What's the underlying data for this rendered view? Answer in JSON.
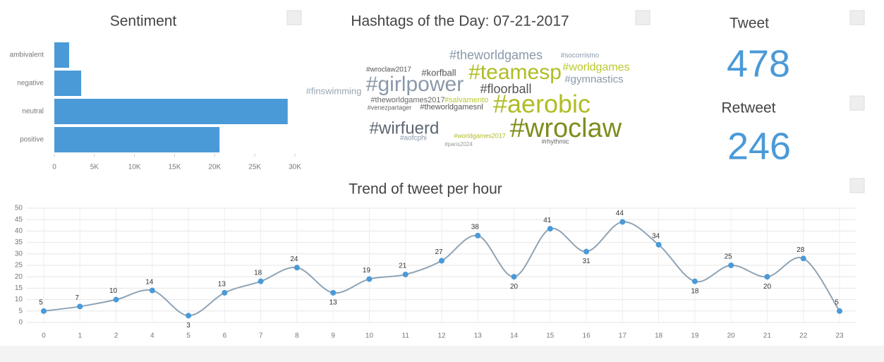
{
  "chart_data": [
    {
      "type": "hbar",
      "title": "Sentiment",
      "categories": [
        "ambivalent",
        "negative",
        "neutral",
        "positive"
      ],
      "values": [
        1850,
        3350,
        29100,
        20600
      ],
      "color": "#4a9ad8",
      "xlim": [
        0,
        30000
      ],
      "xticks": [
        0,
        {
          "value": 5000,
          "label": "5K"
        },
        {
          "value": 10000,
          "label": "10K"
        },
        {
          "value": 15000,
          "label": "15K"
        },
        {
          "value": 20000,
          "label": "20K"
        },
        {
          "value": 25000,
          "label": "25K"
        },
        {
          "value": 30000,
          "label": "30K"
        }
      ]
    },
    {
      "type": "line",
      "title": "Trend of tweet per hour",
      "categories": [
        "0",
        "1",
        "2",
        "4",
        "5",
        "6",
        "7",
        "8",
        "9",
        "10",
        "11",
        "12",
        "13",
        "14",
        "15",
        "16",
        "17",
        "18",
        "19",
        "20",
        "21",
        "22",
        "23"
      ],
      "values": [
        5,
        7,
        10,
        14,
        3,
        13,
        18,
        24,
        13,
        19,
        21,
        27,
        38,
        20,
        41,
        31,
        44,
        34,
        18,
        25,
        20,
        28,
        5
      ],
      "color": "#8ea3b6",
      "point_color": "#4a9ad8",
      "ylim": [
        0,
        50
      ],
      "yticks": [
        0,
        5,
        10,
        15,
        20,
        25,
        30,
        35,
        40,
        45,
        50
      ],
      "grid": true
    }
  ],
  "hashtags": {
    "title": "Hashtags of the Day: 07-21-2017",
    "words": [
      "#girlpower",
      "#teamesp",
      "#aerobic",
      "#wroclaw",
      "#wirfuerd",
      "#floorball",
      "#theworldgames",
      "#worldgames",
      "#gymnastics",
      "#korfball",
      "#finswimming",
      "#wroclaw2017",
      "#theworldgames2017",
      "#salvamento",
      "#theworldgamesnl",
      "#venezpartager",
      "#socorrismo",
      "#rhythmic",
      "#aofcphi",
      "#worldgames2017",
      "#paris2024"
    ]
  },
  "metrics": [
    {
      "label": "Tweet",
      "value": 478
    },
    {
      "label": "Retweet",
      "value": 246
    }
  ]
}
